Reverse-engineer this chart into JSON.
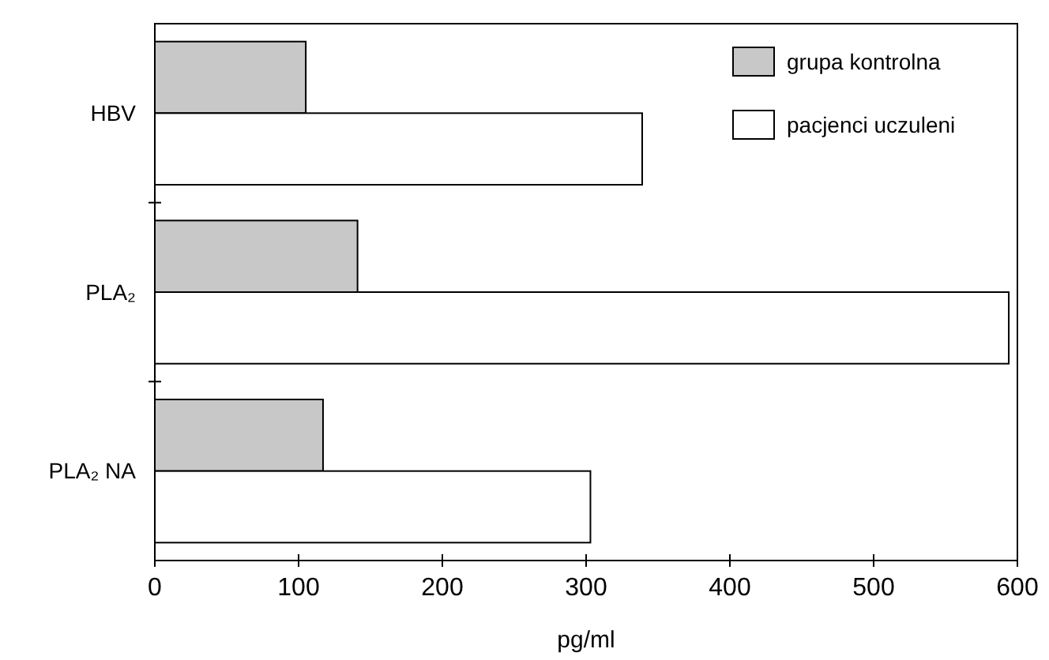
{
  "chart_data": {
    "type": "bar",
    "orientation": "horizontal",
    "xlabel": "pg/ml",
    "categories": [
      "HBV",
      "PLA₂",
      "PLA₂ NA"
    ],
    "series": [
      {
        "name": "grupa kontrolna",
        "color": "#c8c8c8",
        "values": [
          105,
          141,
          117
        ]
      },
      {
        "name": "pacjenci uczuleni",
        "color": "#ffffff",
        "values": [
          339,
          594,
          303
        ]
      }
    ],
    "xlim": [
      0,
      600
    ],
    "xticks": [
      0,
      100,
      200,
      300,
      400,
      500,
      600
    ],
    "grid": false,
    "legend": "top right"
  }
}
